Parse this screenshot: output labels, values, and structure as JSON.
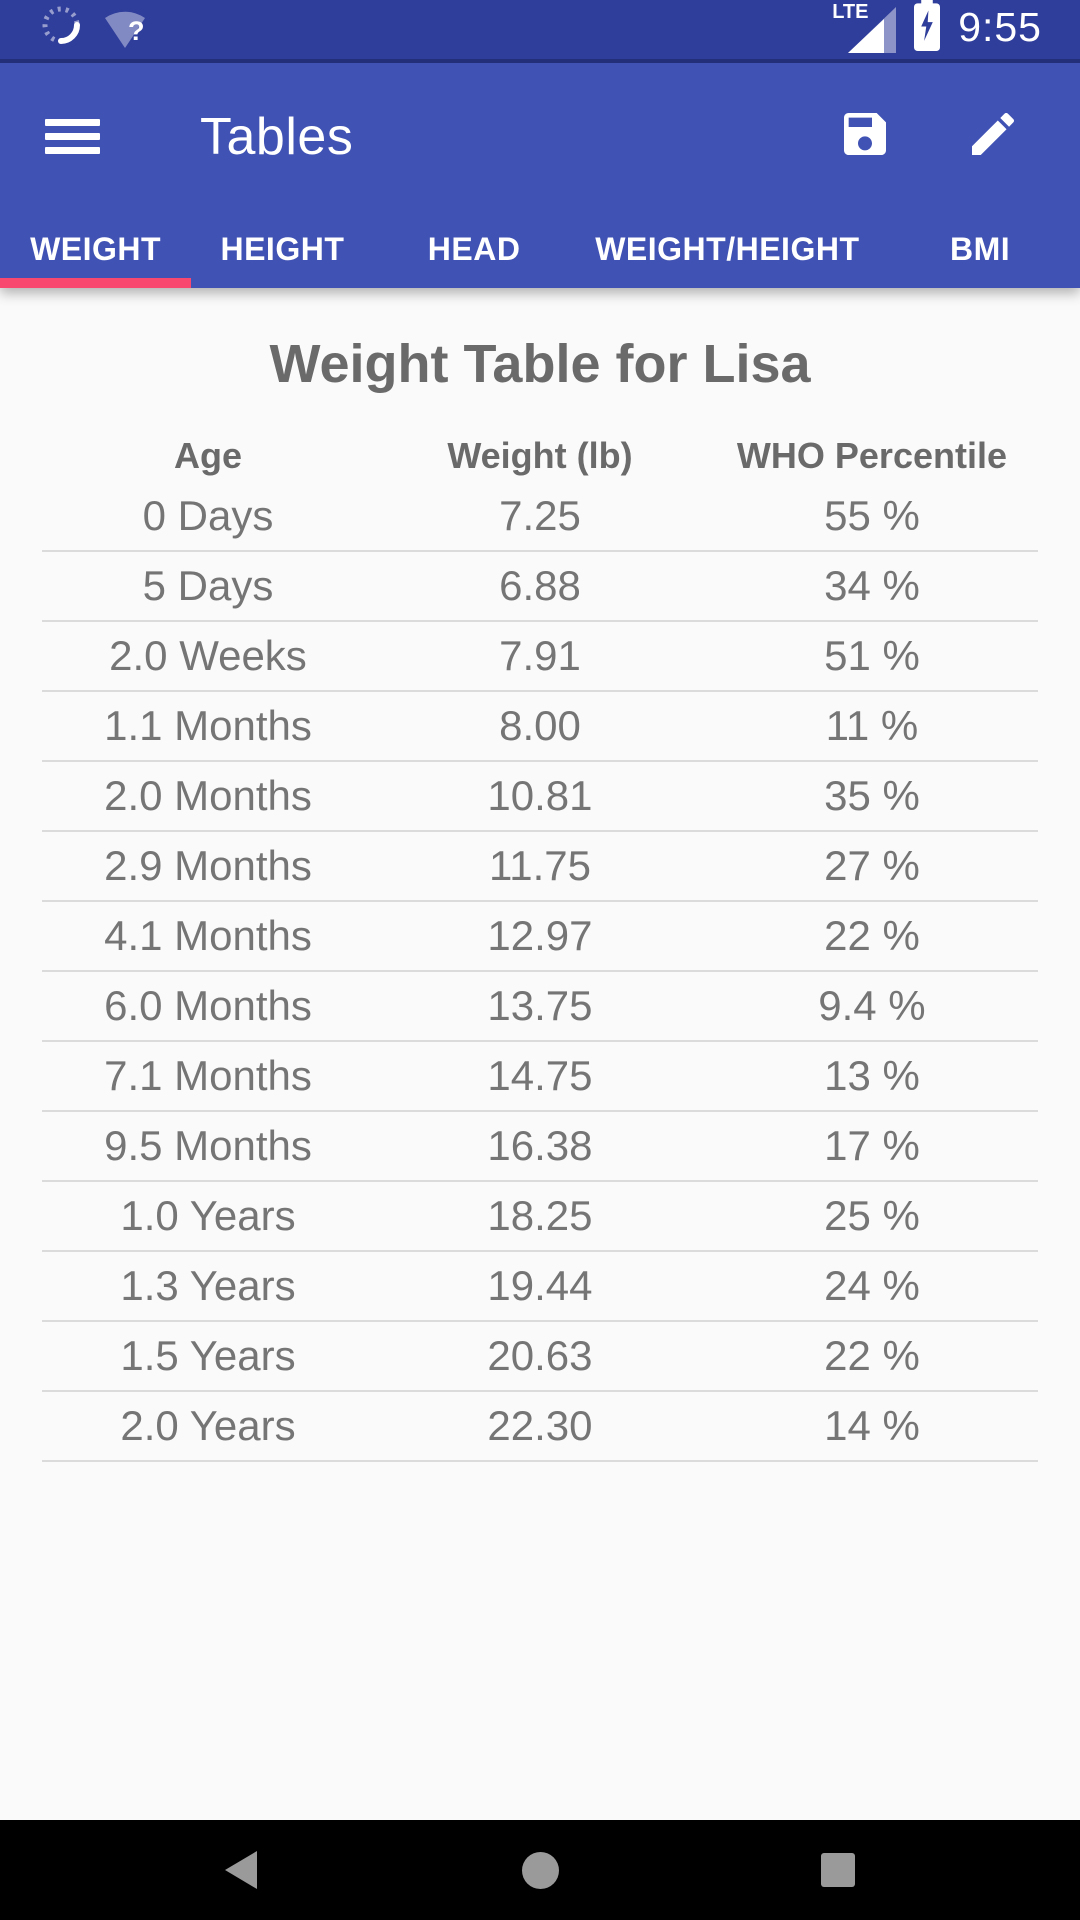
{
  "colors": {
    "status_bar_bg": "#2F3D9B",
    "app_bar_bg": "#4052B4",
    "tab_indicator": "#F8486F",
    "content_bg": "#FAFAFA",
    "nav_bar_bg": "#000000",
    "nav_icon": "#9A9A9A",
    "text_primary": "#757575",
    "text_heading": "#6A6A6A",
    "divider": "#DBDBDB"
  },
  "status_bar": {
    "time": "9:55",
    "network_type": "LTE",
    "wifi_question_mark": "?",
    "icons": [
      "loading-spinner",
      "wifi-question",
      "lte-signal",
      "battery-charging"
    ]
  },
  "app_bar": {
    "title": "Tables",
    "actions": [
      "save",
      "edit"
    ]
  },
  "tabs": [
    {
      "label": "WEIGHT",
      "active": true
    },
    {
      "label": "HEIGHT",
      "active": false
    },
    {
      "label": "HEAD",
      "active": false
    },
    {
      "label": "WEIGHT/HEIGHT",
      "active": false
    },
    {
      "label": "BMI",
      "active": false
    }
  ],
  "table": {
    "title": "Weight Table for Lisa",
    "columns": [
      "Age",
      "Weight (lb)",
      "WHO Percentile"
    ],
    "rows": [
      {
        "age": "0 Days",
        "weight": "7.25",
        "percentile": "55 %"
      },
      {
        "age": "5 Days",
        "weight": "6.88",
        "percentile": "34 %"
      },
      {
        "age": "2.0 Weeks",
        "weight": "7.91",
        "percentile": "51 %"
      },
      {
        "age": "1.1 Months",
        "weight": "8.00",
        "percentile": "11 %"
      },
      {
        "age": "2.0 Months",
        "weight": "10.81",
        "percentile": "35 %"
      },
      {
        "age": "2.9 Months",
        "weight": "11.75",
        "percentile": "27 %"
      },
      {
        "age": "4.1 Months",
        "weight": "12.97",
        "percentile": "22 %"
      },
      {
        "age": "6.0 Months",
        "weight": "13.75",
        "percentile": "9.4 %"
      },
      {
        "age": "7.1 Months",
        "weight": "14.75",
        "percentile": "13 %"
      },
      {
        "age": "9.5 Months",
        "weight": "16.38",
        "percentile": "17 %"
      },
      {
        "age": "1.0 Years",
        "weight": "18.25",
        "percentile": "25 %"
      },
      {
        "age": "1.3 Years",
        "weight": "19.44",
        "percentile": "24 %"
      },
      {
        "age": "1.5 Years",
        "weight": "20.63",
        "percentile": "22 %"
      },
      {
        "age": "2.0 Years",
        "weight": "22.30",
        "percentile": "14 %"
      }
    ]
  },
  "nav_bar": {
    "buttons": [
      "back",
      "home",
      "recents"
    ]
  }
}
